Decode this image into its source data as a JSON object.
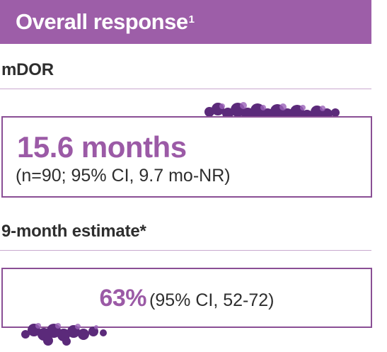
{
  "header": {
    "title": "Overall response",
    "superscript": "1"
  },
  "mdor": {
    "label": "mDOR",
    "value": "15.6 months",
    "detail": "(n=90; 95% CI, 9.7 mo-NR)"
  },
  "estimate": {
    "label": "9-month estimate*",
    "value": "63%",
    "detail": "(95% CI, 52-72)"
  },
  "colors": {
    "header_bg": "#9d5ea8",
    "accent": "#9b5aa6",
    "border": "#8a4f95",
    "rule": "#c9a9cf",
    "molecule": "#5b2a7a"
  },
  "decorations": [
    "molecule-cluster-icon",
    "molecule-cluster-icon"
  ]
}
